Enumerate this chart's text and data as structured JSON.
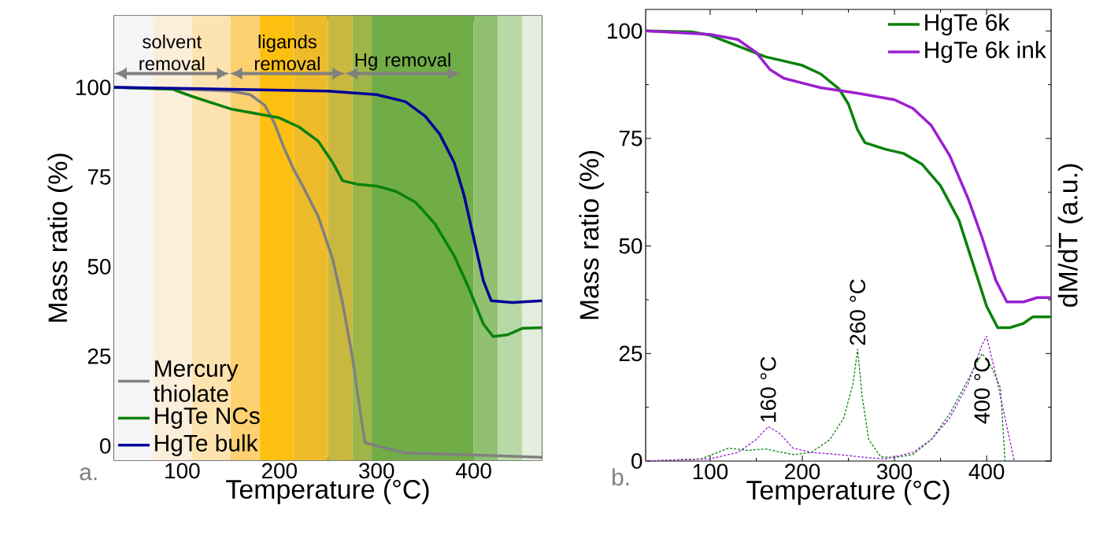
{
  "chart_data": [
    {
      "type": "line",
      "xlabel": "Temperature (°C)",
      "ylabel": "Mass ratio (%)",
      "xlim": [
        30,
        470
      ],
      "ylim": [
        -4,
        120
      ],
      "xticks": [
        100,
        200,
        300,
        400
      ],
      "yticks": [
        0,
        25,
        50,
        75,
        100
      ],
      "legend": "bottom left",
      "annotations": [
        "solvent removal",
        "ligands removal",
        "Hg removal",
        "a."
      ],
      "bands": [
        {
          "axis": "x",
          "from": 30,
          "to": 70,
          "color": "#f5f5f8"
        },
        {
          "axis": "x",
          "from": 70,
          "to": 110,
          "color": "#fbeedb"
        },
        {
          "axis": "x",
          "from": 110,
          "to": 150,
          "color": "#fde3b0"
        },
        {
          "axis": "x",
          "from": 150,
          "to": 180,
          "color": "#fdd070"
        },
        {
          "axis": "x",
          "from": 180,
          "to": 215,
          "color": "#fec010"
        },
        {
          "axis": "x",
          "from": 215,
          "to": 250,
          "color": "#eebb2a"
        },
        {
          "axis": "x",
          "from": 250,
          "to": 275,
          "color": "#c8b840"
        },
        {
          "axis": "x",
          "from": 275,
          "to": 295,
          "color": "#9fb548"
        },
        {
          "axis": "x",
          "from": 295,
          "to": 400,
          "color": "#70ad47"
        },
        {
          "axis": "x",
          "from": 400,
          "to": 425,
          "color": "#90c070"
        },
        {
          "axis": "x",
          "from": 425,
          "to": 450,
          "color": "#b8d8a8"
        },
        {
          "axis": "x",
          "from": 450,
          "to": 470,
          "color": "#e2eedb"
        }
      ],
      "series": [
        {
          "name": "Mercury thiolate",
          "color": "#808080",
          "x": [
            30,
            100,
            150,
            170,
            185,
            195,
            205,
            215,
            225,
            240,
            255,
            265,
            275,
            283,
            288,
            300,
            330,
            400,
            470
          ],
          "values": [
            100,
            99.5,
            99,
            98,
            95,
            90,
            83,
            77,
            72,
            64,
            52,
            40,
            25,
            10,
            1,
            0,
            -2,
            -2.5,
            -3.2
          ]
        },
        {
          "name": "HgTe NCs",
          "color": "#0a820a",
          "x": [
            30,
            90,
            110,
            150,
            180,
            200,
            220,
            240,
            255,
            265,
            280,
            300,
            320,
            340,
            360,
            380,
            395,
            410,
            420,
            435,
            450,
            470
          ],
          "values": [
            100,
            99.5,
            97.5,
            94,
            92.5,
            91.5,
            89,
            85,
            79,
            74,
            73,
            72.5,
            71,
            68,
            62,
            53,
            44,
            34,
            30.5,
            31,
            32.8,
            33
          ]
        },
        {
          "name": "HgTe bulk",
          "color": "#000099",
          "x": [
            30,
            150,
            250,
            300,
            330,
            350,
            365,
            380,
            390,
            400,
            410,
            418,
            440,
            470
          ],
          "values": [
            100,
            99.5,
            99,
            98,
            96,
            92,
            87,
            79,
            70,
            58,
            46,
            40.5,
            40,
            40.5
          ]
        }
      ]
    },
    {
      "type": "line",
      "xlabel": "Temperature (°C)",
      "ylabel": "Mass ratio (%)",
      "y2label": "dM/dT (a.u.)",
      "xlim": [
        30,
        470
      ],
      "ylim": [
        0,
        105
      ],
      "xticks": [
        100,
        200,
        300,
        400
      ],
      "yticks": [
        0,
        25,
        50,
        75,
        100
      ],
      "legend": "top right",
      "annotations": [
        {
          "text": "160 °C",
          "x": 163,
          "y": 8
        },
        {
          "text": "260 °C",
          "x": 260,
          "y": 26
        },
        {
          "text": "400 °C",
          "x": 395,
          "y": 25
        },
        "b."
      ],
      "series": [
        {
          "name": "HgTe 6k",
          "color": "#0a820a",
          "x": [
            30,
            80,
            100,
            130,
            160,
            200,
            220,
            240,
            250,
            260,
            268,
            290,
            310,
            330,
            350,
            370,
            385,
            400,
            412,
            425,
            440,
            450,
            470
          ],
          "values": [
            100,
            99.8,
            99,
            96.5,
            94,
            92,
            90,
            86.5,
            83,
            77,
            74,
            72.5,
            71.5,
            69,
            64,
            56,
            46,
            36,
            31,
            31,
            32,
            33.5,
            33.5
          ]
        },
        {
          "name": "HgTe 6k ink",
          "color": "#9b1fd1",
          "x": [
            30,
            100,
            130,
            150,
            165,
            180,
            220,
            260,
            300,
            320,
            340,
            360,
            380,
            395,
            410,
            422,
            440,
            455,
            470
          ],
          "values": [
            100,
            99.2,
            98,
            95,
            91,
            89,
            86.8,
            85.5,
            84,
            82,
            78,
            71,
            61,
            52,
            42,
            37,
            37,
            38,
            38
          ]
        },
        {
          "color": "#0a820a",
          "line_style": "dashed",
          "x": [
            30,
            90,
            120,
            140,
            160,
            190,
            210,
            230,
            245,
            255,
            260,
            265,
            272,
            285,
            300,
            320,
            340,
            360,
            380,
            395,
            405,
            415,
            420
          ],
          "values": [
            0,
            0.5,
            3,
            2.5,
            2.8,
            1.5,
            2,
            5,
            10,
            18,
            26,
            15,
            5,
            1,
            0.8,
            1.5,
            5,
            11,
            19,
            25,
            22,
            17,
            0
          ]
        },
        {
          "color": "#9b1fd1",
          "line_style": "dashed",
          "x": [
            30,
            100,
            130,
            150,
            163,
            175,
            190,
            210,
            240,
            270,
            290,
            320,
            340,
            360,
            380,
            395,
            400,
            410,
            425,
            430
          ],
          "values": [
            0,
            0.5,
            2,
            5,
            8,
            6.5,
            3,
            2,
            1.5,
            0.8,
            0.5,
            2,
            5,
            10,
            18,
            27,
            29,
            20,
            5,
            0
          ]
        }
      ]
    }
  ]
}
